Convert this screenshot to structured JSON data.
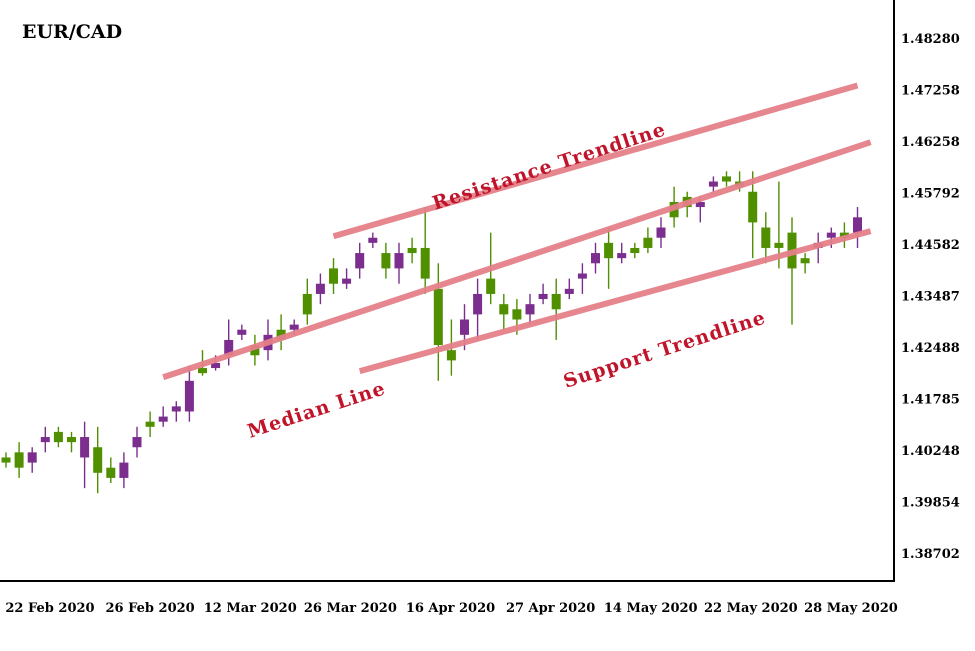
{
  "chart_data": {
    "type": "candlestick",
    "title": "EUR/CAD",
    "colors": {
      "bullish": "#4f8f00",
      "bearish": "#7b2e8e",
      "trendline": "#e58089",
      "annotation": "#c0142a",
      "axis": "#000000"
    },
    "y_ticks": [
      "1.48280",
      "1.47258",
      "1.46258",
      "1.45792",
      "1.44582",
      "1.43487",
      "1.42488",
      "1.41785",
      "1.40248",
      "1.39854",
      "1.38702"
    ],
    "x_ticks": [
      "22 Feb 2020",
      "26 Feb 2020",
      "12 Mar 2020",
      "26 Mar 2020",
      "16 Apr 2020",
      "27 Apr 2020",
      "14 May 2020",
      "22 May 2020",
      "28 May 2020"
    ],
    "ylim": [
      1.379,
      1.488
    ],
    "candles": [
      {
        "x": 0,
        "open": 1.402,
        "close": 1.401,
        "high": 1.403,
        "low": 1.4,
        "dir": "up"
      },
      {
        "x": 1,
        "open": 1.403,
        "close": 1.4,
        "high": 1.405,
        "low": 1.398,
        "dir": "up"
      },
      {
        "x": 2,
        "open": 1.401,
        "close": 1.403,
        "high": 1.404,
        "low": 1.399,
        "dir": "down"
      },
      {
        "x": 3,
        "open": 1.405,
        "close": 1.406,
        "high": 1.408,
        "low": 1.403,
        "dir": "down"
      },
      {
        "x": 4,
        "open": 1.407,
        "close": 1.405,
        "high": 1.408,
        "low": 1.404,
        "dir": "up"
      },
      {
        "x": 5,
        "open": 1.406,
        "close": 1.405,
        "high": 1.407,
        "low": 1.403,
        "dir": "up"
      },
      {
        "x": 6,
        "open": 1.402,
        "close": 1.406,
        "high": 1.409,
        "low": 1.396,
        "dir": "down"
      },
      {
        "x": 7,
        "open": 1.404,
        "close": 1.399,
        "high": 1.408,
        "low": 1.395,
        "dir": "up"
      },
      {
        "x": 8,
        "open": 1.4,
        "close": 1.398,
        "high": 1.402,
        "low": 1.397,
        "dir": "up"
      },
      {
        "x": 9,
        "open": 1.398,
        "close": 1.401,
        "high": 1.403,
        "low": 1.396,
        "dir": "down"
      },
      {
        "x": 10,
        "open": 1.406,
        "close": 1.404,
        "high": 1.408,
        "low": 1.402,
        "dir": "down"
      },
      {
        "x": 11,
        "open": 1.409,
        "close": 1.408,
        "high": 1.411,
        "low": 1.406,
        "dir": "up"
      },
      {
        "x": 12,
        "open": 1.41,
        "close": 1.409,
        "high": 1.412,
        "low": 1.408,
        "dir": "down"
      },
      {
        "x": 13,
        "open": 1.412,
        "close": 1.411,
        "high": 1.413,
        "low": 1.409,
        "dir": "down"
      },
      {
        "x": 14,
        "open": 1.411,
        "close": 1.417,
        "high": 1.42,
        "low": 1.409,
        "dir": "down"
      },
      {
        "x": 15,
        "open": 1.4185,
        "close": 1.4195,
        "high": 1.423,
        "low": 1.418,
        "dir": "up"
      },
      {
        "x": 16,
        "open": 1.4195,
        "close": 1.4205,
        "high": 1.422,
        "low": 1.419,
        "dir": "down"
      },
      {
        "x": 17,
        "open": 1.422,
        "close": 1.425,
        "high": 1.429,
        "low": 1.42,
        "dir": "down"
      },
      {
        "x": 18,
        "open": 1.426,
        "close": 1.427,
        "high": 1.428,
        "low": 1.425,
        "dir": "down"
      },
      {
        "x": 19,
        "open": 1.424,
        "close": 1.422,
        "high": 1.426,
        "low": 1.42,
        "dir": "up"
      },
      {
        "x": 20,
        "open": 1.423,
        "close": 1.426,
        "high": 1.429,
        "low": 1.421,
        "dir": "down"
      },
      {
        "x": 21,
        "open": 1.427,
        "close": 1.425,
        "high": 1.43,
        "low": 1.423,
        "dir": "up"
      },
      {
        "x": 22,
        "open": 1.427,
        "close": 1.428,
        "high": 1.429,
        "low": 1.426,
        "dir": "down"
      },
      {
        "x": 23,
        "open": 1.43,
        "close": 1.434,
        "high": 1.437,
        "low": 1.428,
        "dir": "up"
      },
      {
        "x": 24,
        "open": 1.434,
        "close": 1.436,
        "high": 1.438,
        "low": 1.432,
        "dir": "down"
      },
      {
        "x": 25,
        "open": 1.439,
        "close": 1.436,
        "high": 1.441,
        "low": 1.434,
        "dir": "up"
      },
      {
        "x": 26,
        "open": 1.436,
        "close": 1.437,
        "high": 1.439,
        "low": 1.435,
        "dir": "down"
      },
      {
        "x": 27,
        "open": 1.439,
        "close": 1.442,
        "high": 1.444,
        "low": 1.437,
        "dir": "down"
      },
      {
        "x": 28,
        "open": 1.444,
        "close": 1.445,
        "high": 1.446,
        "low": 1.443,
        "dir": "down"
      },
      {
        "x": 29,
        "open": 1.442,
        "close": 1.439,
        "high": 1.444,
        "low": 1.437,
        "dir": "up"
      },
      {
        "x": 30,
        "open": 1.439,
        "close": 1.442,
        "high": 1.444,
        "low": 1.436,
        "dir": "down"
      },
      {
        "x": 31,
        "open": 1.443,
        "close": 1.442,
        "high": 1.445,
        "low": 1.44,
        "dir": "up"
      },
      {
        "x": 32,
        "open": 1.443,
        "close": 1.437,
        "high": 1.451,
        "low": 1.434,
        "dir": "up"
      },
      {
        "x": 33,
        "open": 1.435,
        "close": 1.424,
        "high": 1.44,
        "low": 1.417,
        "dir": "up"
      },
      {
        "x": 34,
        "open": 1.421,
        "close": 1.423,
        "high": 1.429,
        "low": 1.418,
        "dir": "up"
      },
      {
        "x": 35,
        "open": 1.426,
        "close": 1.429,
        "high": 1.432,
        "low": 1.423,
        "dir": "down"
      },
      {
        "x": 36,
        "open": 1.43,
        "close": 1.434,
        "high": 1.437,
        "low": 1.425,
        "dir": "down"
      },
      {
        "x": 37,
        "open": 1.437,
        "close": 1.434,
        "high": 1.446,
        "low": 1.432,
        "dir": "up"
      },
      {
        "x": 38,
        "open": 1.432,
        "close": 1.43,
        "high": 1.434,
        "low": 1.427,
        "dir": "up"
      },
      {
        "x": 39,
        "open": 1.431,
        "close": 1.429,
        "high": 1.433,
        "low": 1.426,
        "dir": "up"
      },
      {
        "x": 40,
        "open": 1.43,
        "close": 1.432,
        "high": 1.434,
        "low": 1.428,
        "dir": "down"
      },
      {
        "x": 41,
        "open": 1.433,
        "close": 1.434,
        "high": 1.436,
        "low": 1.432,
        "dir": "down"
      },
      {
        "x": 42,
        "open": 1.434,
        "close": 1.431,
        "high": 1.437,
        "low": 1.425,
        "dir": "up"
      },
      {
        "x": 43,
        "open": 1.434,
        "close": 1.435,
        "high": 1.437,
        "low": 1.433,
        "dir": "down"
      },
      {
        "x": 44,
        "open": 1.437,
        "close": 1.438,
        "high": 1.44,
        "low": 1.434,
        "dir": "down"
      },
      {
        "x": 45,
        "open": 1.44,
        "close": 1.442,
        "high": 1.444,
        "low": 1.438,
        "dir": "down"
      },
      {
        "x": 46,
        "open": 1.444,
        "close": 1.441,
        "high": 1.447,
        "low": 1.435,
        "dir": "up"
      },
      {
        "x": 47,
        "open": 1.441,
        "close": 1.442,
        "high": 1.444,
        "low": 1.44,
        "dir": "down"
      },
      {
        "x": 48,
        "open": 1.442,
        "close": 1.443,
        "high": 1.444,
        "low": 1.441,
        "dir": "up"
      },
      {
        "x": 49,
        "open": 1.443,
        "close": 1.445,
        "high": 1.447,
        "low": 1.442,
        "dir": "up"
      },
      {
        "x": 50,
        "open": 1.445,
        "close": 1.447,
        "high": 1.449,
        "low": 1.443,
        "dir": "down"
      },
      {
        "x": 51,
        "open": 1.449,
        "close": 1.452,
        "high": 1.455,
        "low": 1.447,
        "dir": "up"
      },
      {
        "x": 52,
        "open": 1.453,
        "close": 1.451,
        "high": 1.454,
        "low": 1.449,
        "dir": "up"
      },
      {
        "x": 53,
        "open": 1.451,
        "close": 1.452,
        "high": 1.453,
        "low": 1.448,
        "dir": "down"
      },
      {
        "x": 54,
        "open": 1.455,
        "close": 1.456,
        "high": 1.457,
        "low": 1.454,
        "dir": "down"
      },
      {
        "x": 55,
        "open": 1.457,
        "close": 1.456,
        "high": 1.458,
        "low": 1.455,
        "dir": "up"
      },
      {
        "x": 56,
        "open": 1.456,
        "close": 1.455,
        "high": 1.458,
        "low": 1.454,
        "dir": "up"
      },
      {
        "x": 57,
        "open": 1.454,
        "close": 1.448,
        "high": 1.458,
        "low": 1.441,
        "dir": "up"
      },
      {
        "x": 58,
        "open": 1.447,
        "close": 1.443,
        "high": 1.45,
        "low": 1.44,
        "dir": "up"
      },
      {
        "x": 59,
        "open": 1.444,
        "close": 1.443,
        "high": 1.456,
        "low": 1.439,
        "dir": "up"
      },
      {
        "x": 60,
        "open": 1.446,
        "close": 1.439,
        "high": 1.449,
        "low": 1.428,
        "dir": "up"
      },
      {
        "x": 61,
        "open": 1.44,
        "close": 1.441,
        "high": 1.442,
        "low": 1.438,
        "dir": "up"
      },
      {
        "x": 62,
        "open": 1.443,
        "close": 1.444,
        "high": 1.446,
        "low": 1.44,
        "dir": "down"
      },
      {
        "x": 63,
        "open": 1.445,
        "close": 1.446,
        "high": 1.447,
        "low": 1.443,
        "dir": "down"
      },
      {
        "x": 64,
        "open": 1.445,
        "close": 1.446,
        "high": 1.448,
        "low": 1.443,
        "dir": "up"
      },
      {
        "x": 65,
        "open": 1.449,
        "close": 1.446,
        "high": 1.451,
        "low": 1.443,
        "dir": "down"
      }
    ],
    "trendlines": [
      {
        "from": [
          25,
          1.4453
        ],
        "to": [
          65,
          1.4748
        ]
      },
      {
        "from": [
          12,
          1.4177
        ],
        "to": [
          66,
          1.4637
        ]
      },
      {
        "from": [
          27,
          1.4189
        ],
        "to": [
          66,
          1.4463
        ]
      }
    ],
    "annotations": [
      "Resistance Trendline",
      "Median Line",
      "Support Trendline"
    ]
  }
}
